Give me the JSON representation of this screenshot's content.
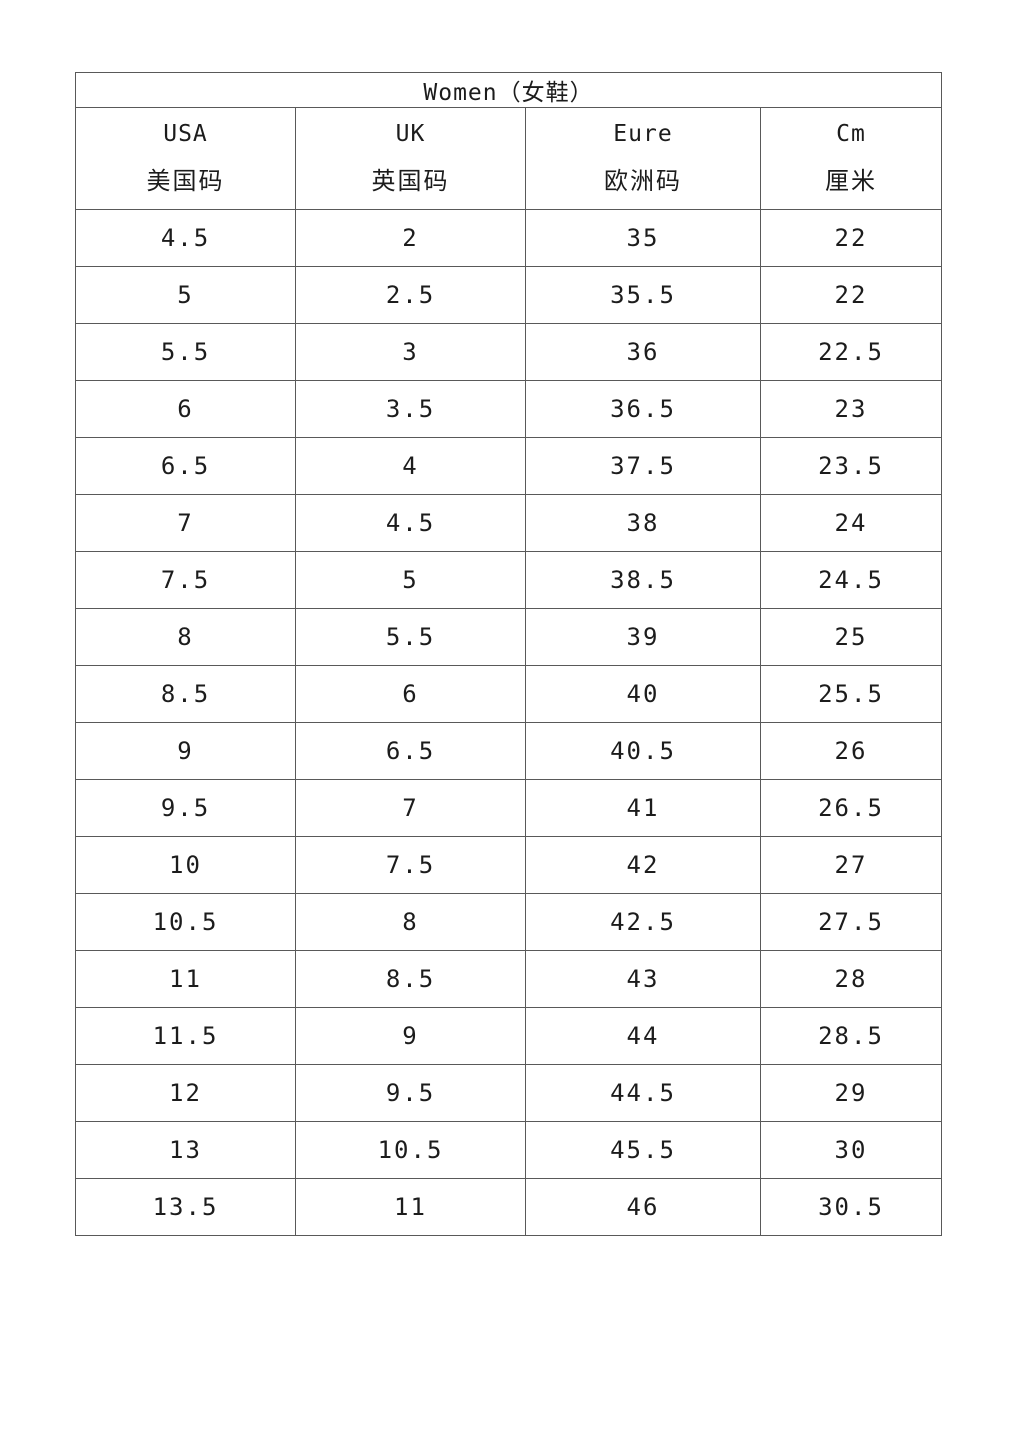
{
  "table": {
    "title": "Women（女鞋）",
    "columns": [
      {
        "en": "USA",
        "zh": "美国码"
      },
      {
        "en": "UK",
        "zh": "英国码"
      },
      {
        "en": "Eure",
        "zh": "欧洲码"
      },
      {
        "en": "Cm",
        "zh": "厘米"
      }
    ],
    "rows": [
      [
        "4.5",
        "2",
        "35",
        "22"
      ],
      [
        "5",
        "2.5",
        "35.5",
        "22"
      ],
      [
        "5.5",
        "3",
        "36",
        "22.5"
      ],
      [
        "6",
        "3.5",
        "36.5",
        "23"
      ],
      [
        "6.5",
        "4",
        "37.5",
        "23.5"
      ],
      [
        "7",
        "4.5",
        "38",
        "24"
      ],
      [
        "7.5",
        "5",
        "38.5",
        "24.5"
      ],
      [
        "8",
        "5.5",
        "39",
        "25"
      ],
      [
        "8.5",
        "6",
        "40",
        "25.5"
      ],
      [
        "9",
        "6.5",
        "40.5",
        "26"
      ],
      [
        "9.5",
        "7",
        "41",
        "26.5"
      ],
      [
        "10",
        "7.5",
        "42",
        "27"
      ],
      [
        "10.5",
        "8",
        "42.5",
        "27.5"
      ],
      [
        "11",
        "8.5",
        "43",
        "28"
      ],
      [
        "11.5",
        "9",
        "44",
        "28.5"
      ],
      [
        "12",
        "9.5",
        "44.5",
        "29"
      ],
      [
        "13",
        "10.5",
        "45.5",
        "30"
      ],
      [
        "13.5",
        "11",
        "46",
        "30.5"
      ]
    ]
  },
  "colors": {
    "border": "#595959",
    "text": "#1c1c1c",
    "background": "#ffffff"
  }
}
